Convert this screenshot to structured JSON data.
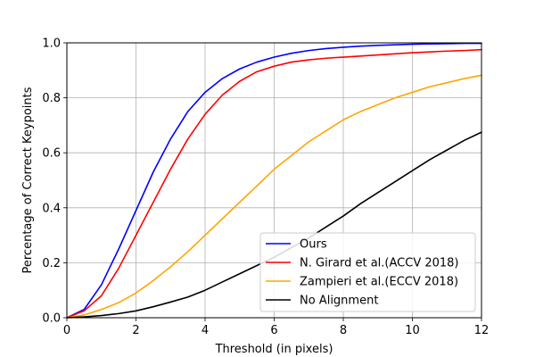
{
  "chart_data": {
    "type": "line",
    "title": "",
    "xlabel": "Threshold (in pixels)",
    "ylabel": "Percentage of Correct Keypoints",
    "xlim": [
      0,
      12
    ],
    "ylim": [
      0,
      1.0
    ],
    "x_ticks": [
      0,
      2,
      4,
      6,
      8,
      10,
      12
    ],
    "y_ticks": [
      0.0,
      0.2,
      0.4,
      0.6,
      0.8,
      1.0
    ],
    "x_tick_labels": [
      "0",
      "2",
      "4",
      "6",
      "8",
      "10",
      "12"
    ],
    "y_tick_labels": [
      "0.0",
      "0.2",
      "0.4",
      "0.6",
      "0.8",
      "1.0"
    ],
    "grid": true,
    "legend_position": "lower-right",
    "x": [
      0,
      0.5,
      1,
      1.5,
      2,
      2.5,
      3,
      3.5,
      4,
      4.5,
      5,
      5.5,
      6,
      6.5,
      7,
      7.5,
      8,
      8.5,
      9,
      9.5,
      10,
      10.5,
      11,
      11.5,
      12
    ],
    "series": [
      {
        "name": "Ours",
        "color": "#0000ff",
        "values": [
          0.0,
          0.03,
          0.12,
          0.25,
          0.39,
          0.53,
          0.65,
          0.75,
          0.82,
          0.87,
          0.905,
          0.93,
          0.948,
          0.962,
          0.972,
          0.979,
          0.984,
          0.988,
          0.991,
          0.993,
          0.995,
          0.996,
          0.997,
          0.998,
          0.998
        ]
      },
      {
        "name": "N. Girard et al.(ACCV 2018)",
        "color": "#ff0000",
        "values": [
          0.0,
          0.025,
          0.08,
          0.18,
          0.3,
          0.42,
          0.54,
          0.65,
          0.74,
          0.81,
          0.86,
          0.895,
          0.915,
          0.93,
          0.938,
          0.944,
          0.948,
          0.952,
          0.956,
          0.96,
          0.964,
          0.967,
          0.97,
          0.972,
          0.975
        ]
      },
      {
        "name": "Zampieri et al.(ECCV 2018)",
        "color": "#ffa500",
        "values": [
          0.0,
          0.01,
          0.03,
          0.055,
          0.09,
          0.135,
          0.185,
          0.24,
          0.3,
          0.36,
          0.42,
          0.48,
          0.54,
          0.59,
          0.64,
          0.68,
          0.72,
          0.75,
          0.775,
          0.8,
          0.82,
          0.84,
          0.855,
          0.87,
          0.882
        ]
      },
      {
        "name": "No Alignment",
        "color": "#000000",
        "values": [
          0.0,
          0.003,
          0.008,
          0.015,
          0.025,
          0.04,
          0.057,
          0.075,
          0.1,
          0.13,
          0.16,
          0.19,
          0.22,
          0.255,
          0.29,
          0.33,
          0.37,
          0.415,
          0.455,
          0.495,
          0.535,
          0.575,
          0.61,
          0.645,
          0.675
        ]
      }
    ]
  }
}
